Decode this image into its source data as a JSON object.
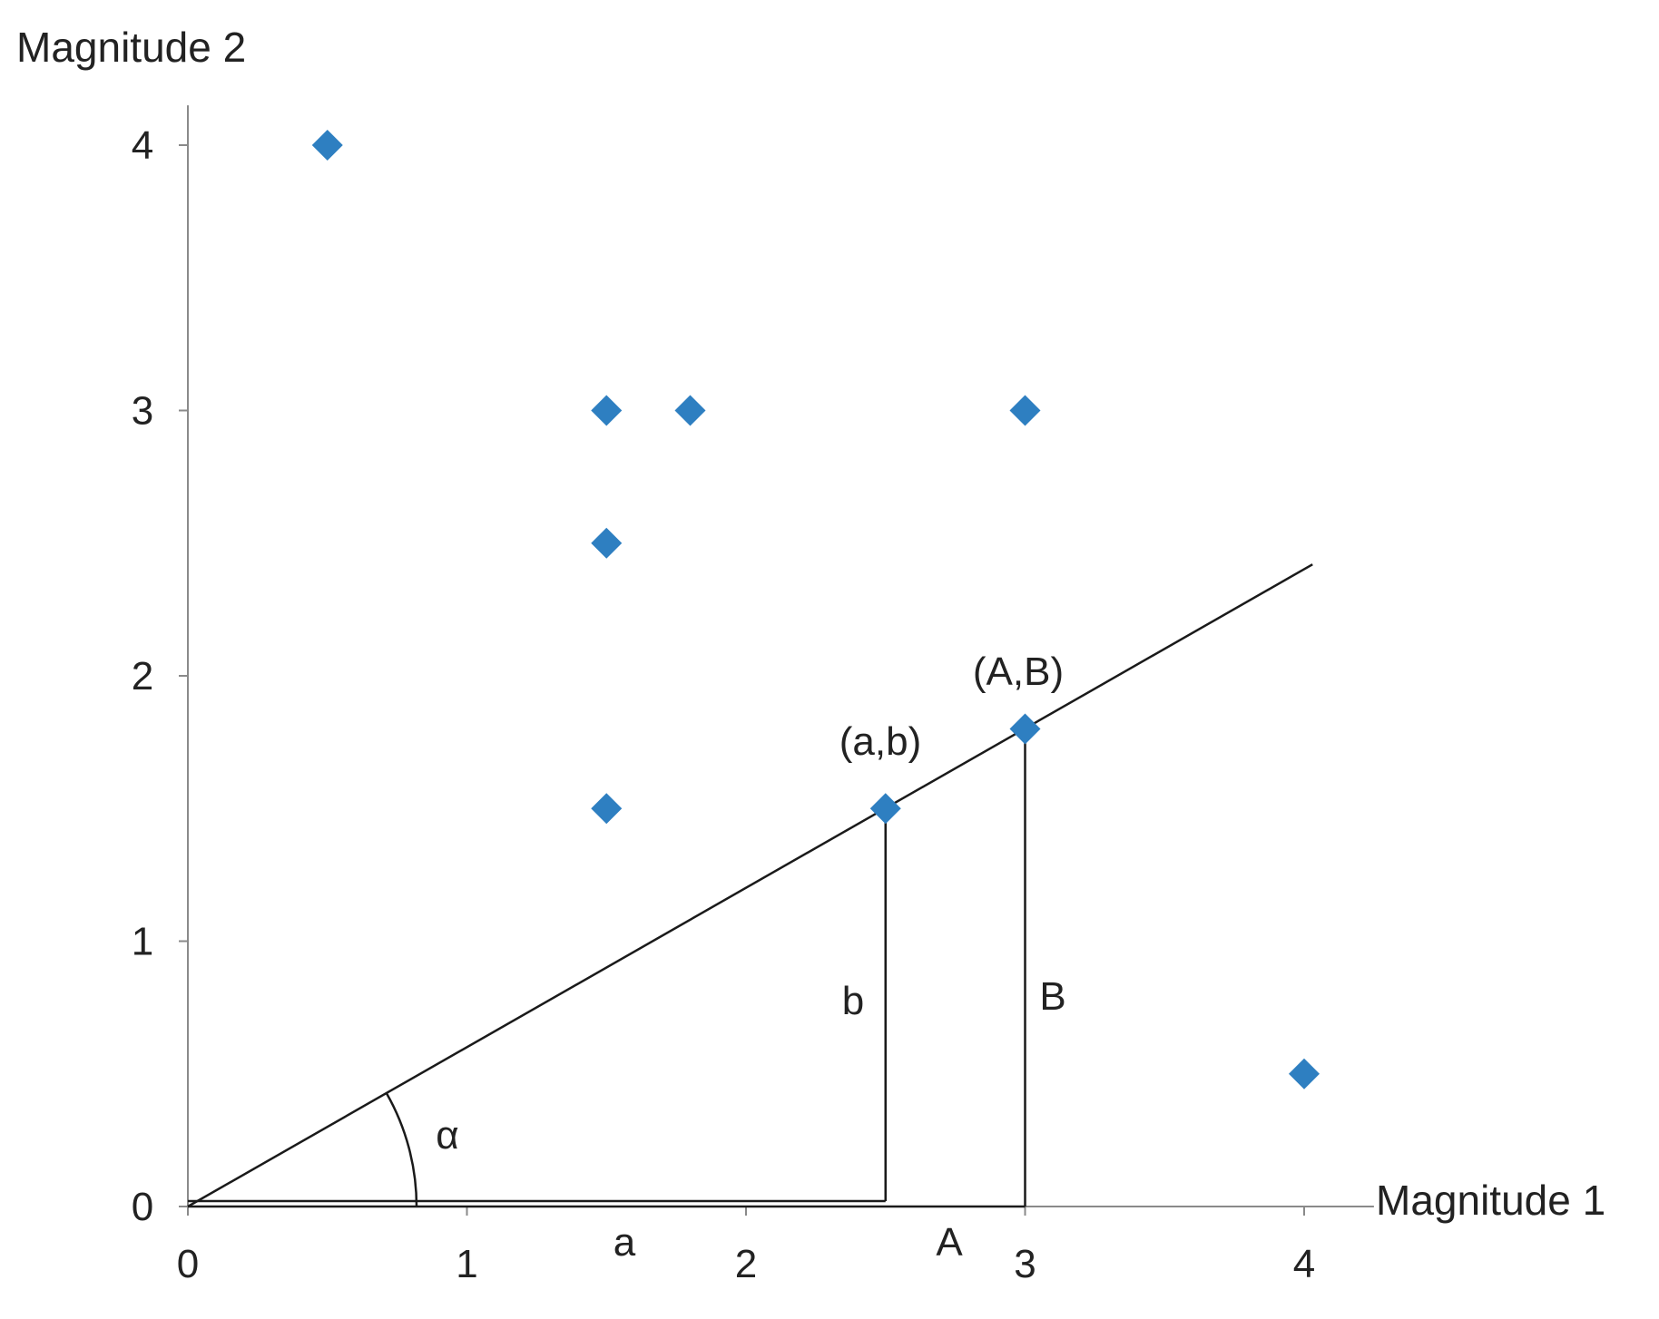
{
  "chart_data": {
    "type": "scatter",
    "xlabel": "Magnitude 1",
    "ylabel": "Magnitude 2",
    "xlim": [
      0,
      4.25
    ],
    "ylim": [
      0,
      4.15
    ],
    "x_ticks": [
      "0",
      "1",
      "2",
      "3",
      "4"
    ],
    "y_ticks": [
      "0",
      "1",
      "2",
      "3",
      "4"
    ],
    "grid": false,
    "marker_color": "#2e7fc1",
    "points": [
      {
        "x": 0.5,
        "y": 4.0
      },
      {
        "x": 1.5,
        "y": 3.0
      },
      {
        "x": 1.8,
        "y": 3.0
      },
      {
        "x": 3.0,
        "y": 3.0
      },
      {
        "x": 1.5,
        "y": 2.5
      },
      {
        "x": 1.5,
        "y": 1.5
      },
      {
        "x": 2.5,
        "y": 1.5
      },
      {
        "x": 3.0,
        "y": 1.8
      },
      {
        "x": 4.0,
        "y": 0.5
      }
    ],
    "line": {
      "from": [
        0,
        0
      ],
      "to": [
        4.03,
        2.42
      ]
    },
    "annotations": {
      "point_ab": "(a,b)",
      "point_AB": "(A,B)",
      "small_b": "b",
      "big_B": "B",
      "small_a": "a",
      "big_A": "A",
      "alpha": "α"
    }
  }
}
